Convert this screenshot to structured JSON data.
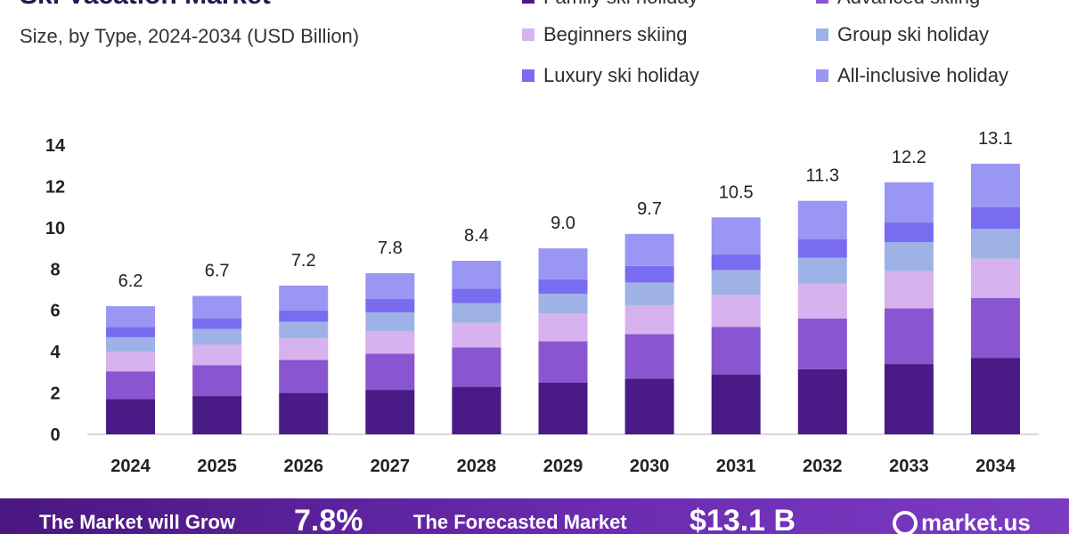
{
  "header": {
    "title": "Ski Vacation Market",
    "subtitle": "Size, by Type, 2024-2034 (USD Billion)"
  },
  "footer": {
    "grow_label": "The Market will Grow",
    "cagr_value": "7.8%",
    "forecast_label": "The Forecasted Market",
    "forecast_value": "$13.1 B",
    "brand": "market.us"
  },
  "colors": {
    "family": "#4a1a86",
    "advanced": "#8a55d0",
    "beginners": "#d6b2ee",
    "group": "#9eb2e6",
    "luxury": "#7a6cf0",
    "allinclusive": "#9a96f4",
    "axis": "#cccccc",
    "text": "#222222"
  },
  "chart_data": {
    "type": "bar",
    "stacked": true,
    "title": "Ski Vacation Market",
    "subtitle": "Size, by Type, 2024-2034 (USD Billion)",
    "xlabel": "",
    "ylabel": "",
    "categories": [
      "2024",
      "2025",
      "2026",
      "2027",
      "2028",
      "2029",
      "2030",
      "2031",
      "2032",
      "2033",
      "2034"
    ],
    "totals": [
      6.2,
      6.7,
      7.2,
      7.8,
      8.4,
      9.0,
      9.7,
      10.5,
      11.3,
      12.2,
      13.1
    ],
    "total_labels": [
      "6.2",
      "6.7",
      "7.2",
      "7.8",
      "8.4",
      "9.0",
      "9.7",
      "10.5",
      "11.3",
      "12.2",
      "13.1"
    ],
    "yticks": [
      "0",
      "2",
      "4",
      "6",
      "8",
      "10",
      "12",
      "14"
    ],
    "ylim": [
      0,
      14
    ],
    "grid": false,
    "legend_position": "top-right",
    "series": [
      {
        "name": "Family ski holiday",
        "color_key": "family",
        "values": [
          1.7,
          1.85,
          2.0,
          2.15,
          2.3,
          2.5,
          2.7,
          2.9,
          3.15,
          3.4,
          3.7
        ]
      },
      {
        "name": "Advanced skiing",
        "color_key": "advanced",
        "values": [
          1.35,
          1.5,
          1.6,
          1.75,
          1.9,
          2.0,
          2.15,
          2.3,
          2.45,
          2.7,
          2.9
        ]
      },
      {
        "name": "Beginners skiing",
        "color_key": "beginners",
        "values": [
          0.95,
          1.0,
          1.05,
          1.1,
          1.2,
          1.35,
          1.4,
          1.55,
          1.7,
          1.8,
          1.9
        ]
      },
      {
        "name": "Group ski holiday",
        "color_key": "group",
        "values": [
          0.7,
          0.75,
          0.8,
          0.9,
          0.95,
          0.95,
          1.1,
          1.2,
          1.25,
          1.4,
          1.45
        ]
      },
      {
        "name": "Luxury ski holiday",
        "color_key": "luxury",
        "values": [
          0.5,
          0.5,
          0.55,
          0.65,
          0.7,
          0.7,
          0.8,
          0.75,
          0.9,
          0.95,
          1.05
        ]
      },
      {
        "name": "All-inclusive holiday",
        "color_key": "allinclusive",
        "values": [
          1.0,
          1.1,
          1.2,
          1.25,
          1.35,
          1.5,
          1.55,
          1.8,
          1.85,
          1.95,
          2.1
        ]
      }
    ]
  }
}
